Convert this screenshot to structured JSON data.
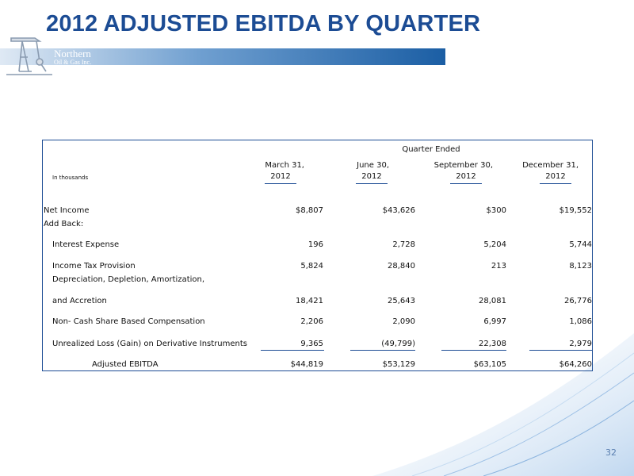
{
  "title": "2012 ADJUSTED EBITDA BY QUARTER",
  "logo": {
    "name": "Northern",
    "subtitle": "Oil & Gas Inc."
  },
  "colors": {
    "title": "#1c4c94",
    "table_border": "#1c4c94",
    "page_number": "#5a7fb0"
  },
  "table": {
    "group_header": "Quarter Ended",
    "units_label": "In thousands",
    "columns": [
      {
        "line1": "March 31,",
        "line2": "2012"
      },
      {
        "line1": "June 30,",
        "line2": "2012"
      },
      {
        "line1": "September 30,",
        "line2": "2012"
      },
      {
        "line1": "December 31,",
        "line2": "2012"
      }
    ],
    "rows": {
      "net_income": {
        "label": "Net Income",
        "values": [
          "$8,807",
          "$43,626",
          "$300",
          "$19,552"
        ]
      },
      "add_back": {
        "label": "Add Back:"
      },
      "interest": {
        "label": "Interest Expense",
        "values": [
          "196",
          "2,728",
          "5,204",
          "5,744"
        ]
      },
      "income_tax": {
        "label": "Income Tax Provision",
        "values": [
          "5,824",
          "28,840",
          "213",
          "8,123"
        ]
      },
      "dda_line1": {
        "label": "Depreciation, Depletion, Amortization,"
      },
      "dda_line2": {
        "label": "and Accretion",
        "values": [
          "18,421",
          "25,643",
          "28,081",
          "26,776"
        ]
      },
      "non_cash": {
        "label": "Non- Cash Share Based Compensation",
        "values": [
          "2,206",
          "2,090",
          "6,997",
          "1,086"
        ]
      },
      "unrealized": {
        "label": "Unrealized Loss (Gain) on Derivative Instruments",
        "values": [
          "9,365",
          "(49,799)",
          "22,308",
          "2,979"
        ]
      },
      "adjusted": {
        "label": "Adjusted EBITDA",
        "values": [
          "$44,819",
          "$53,129",
          "$63,105",
          "$64,260"
        ]
      }
    }
  },
  "page_number": "32"
}
